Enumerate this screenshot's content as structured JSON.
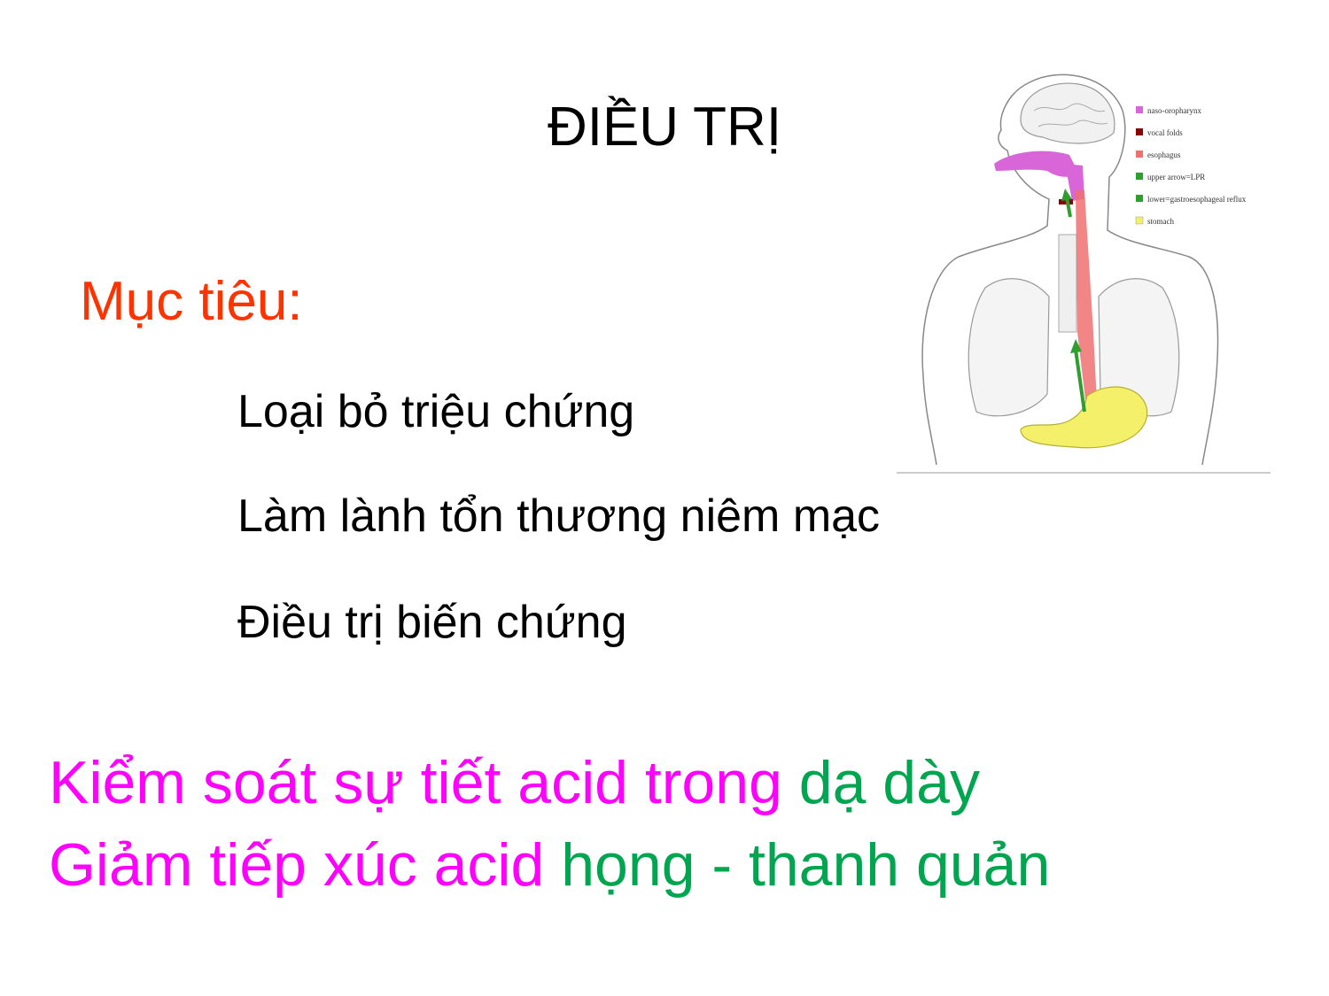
{
  "slide": {
    "title": "ĐIỀU TRỊ",
    "goal_label": "Mục tiêu:",
    "goals": [
      "Loại bỏ triệu chứng",
      "Làm lành tổn thương niêm mạc",
      "Điều trị biến chứng"
    ],
    "emphasis": [
      {
        "part1": "Kiểm soát sự tiết acid trong ",
        "part2": "dạ dày"
      },
      {
        "part1": "Giảm tiếp xúc acid ",
        "part2": "họng - thanh quản"
      }
    ]
  },
  "figure": {
    "legend": [
      {
        "label": "naso-oropharynx",
        "color": "#d966d9"
      },
      {
        "label": "vocal folds",
        "color": "#8b0000"
      },
      {
        "label": "esophagus",
        "color": "#f07070"
      },
      {
        "label": "upper arrow=LPR",
        "color": "#2e9e2e"
      },
      {
        "label": "lower=gastroesophageal reflux",
        "color": "#2e9e2e"
      },
      {
        "label": "stomach",
        "color": "#f5f06a"
      }
    ]
  },
  "colors": {
    "goal_label": "#ff3300",
    "emphasis_pink": "#ff00ff",
    "emphasis_green": "#00a550"
  }
}
